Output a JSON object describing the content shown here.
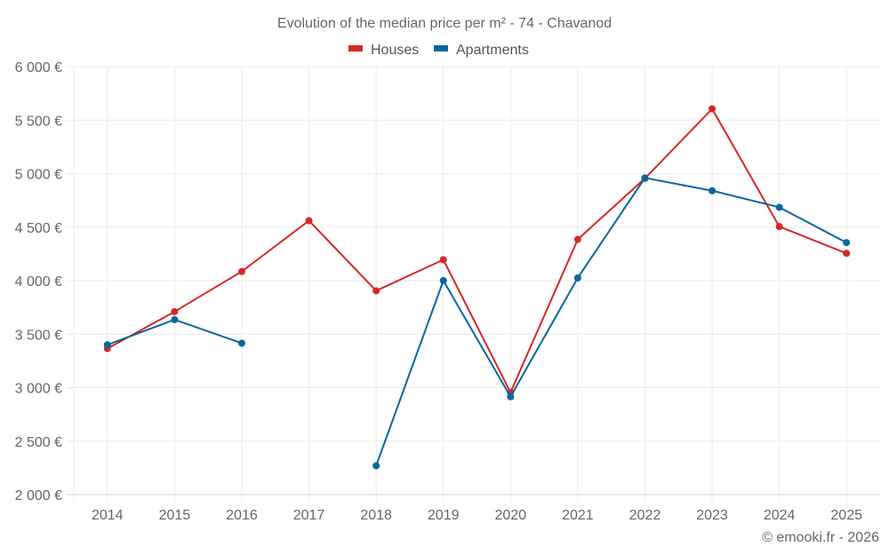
{
  "chart_data": {
    "type": "line",
    "title": "Evolution of the median price per m² - 74 - Chavanod",
    "xlabel": "",
    "ylabel": "",
    "categories": [
      "2014",
      "2015",
      "2016",
      "2017",
      "2018",
      "2019",
      "2020",
      "2021",
      "2022",
      "2023",
      "2024",
      "2025"
    ],
    "ylim": [
      2000,
      6000
    ],
    "yticks": [
      2000,
      2500,
      3000,
      3500,
      4000,
      4500,
      5000,
      5500,
      6000
    ],
    "ytick_labels": [
      "2 000 €",
      "2 500 €",
      "3 000 €",
      "3 500 €",
      "4 000 €",
      "4 500 €",
      "5 000 €",
      "5 500 €",
      "6 000 €"
    ],
    "grid": true,
    "legend_position": "top-center",
    "series": [
      {
        "name": "Houses",
        "color": "#d62728",
        "values": [
          3365,
          3710,
          4085,
          4560,
          3905,
          4195,
          2955,
          4385,
          4955,
          5605,
          4505,
          4255
        ]
      },
      {
        "name": "Apartments",
        "color": "#08679e",
        "values": [
          3400,
          3635,
          3415,
          null,
          2270,
          4000,
          2915,
          4025,
          4960,
          4840,
          4685,
          4355
        ]
      }
    ]
  },
  "credit": "© emooki.fr - 2026"
}
